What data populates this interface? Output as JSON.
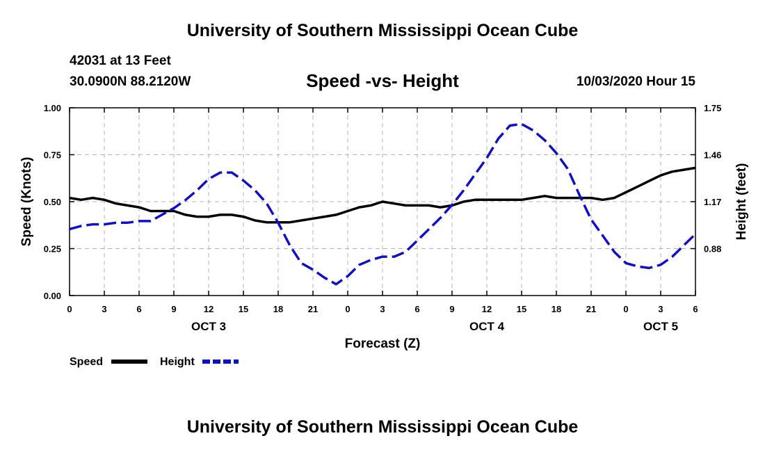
{
  "header": {
    "title": "University of Southern Mississippi Ocean Cube",
    "station": "42031 at 13 Feet",
    "coords": "30.0900N 88.2120W",
    "date": "10/03/2020 Hour 15"
  },
  "footer": {
    "title": "University of Southern Mississippi Ocean Cube"
  },
  "chart_data": {
    "type": "line",
    "title": "Speed -vs- Height",
    "xlabel": "Forecast (Z)",
    "ylabel": "Speed (Knots)",
    "y2label": "Height (feet)",
    "xlim": [
      0,
      54
    ],
    "ylim": [
      0,
      1.0
    ],
    "y2lim": [
      0.59,
      1.75
    ],
    "grid": true,
    "x_ticks": [
      0,
      3,
      6,
      9,
      12,
      15,
      18,
      21,
      24,
      27,
      30,
      33,
      36,
      39,
      42,
      45,
      48,
      51,
      54
    ],
    "x_tick_labels": [
      "0",
      "3",
      "6",
      "9",
      "12",
      "15",
      "18",
      "21",
      "0",
      "3",
      "6",
      "9",
      "12",
      "15",
      "18",
      "21",
      "0",
      "3",
      "6"
    ],
    "y_ticks": [
      0,
      0.25,
      0.5,
      0.75,
      1.0
    ],
    "y_tick_labels": [
      "0.00",
      "0.25",
      "0.50",
      "0.75",
      "1.00"
    ],
    "y2_ticks": [
      0.88,
      1.17,
      1.46,
      1.75
    ],
    "y2_tick_labels": [
      "0.88",
      "1.17",
      "1.46",
      "1.75"
    ],
    "day_labels": [
      {
        "x": 12,
        "label": "OCT 3"
      },
      {
        "x": 36,
        "label": "OCT 4"
      },
      {
        "x": 51,
        "label": "OCT 5"
      }
    ],
    "legend_position": "bottom-left",
    "series": [
      {
        "name": "Speed",
        "axis": "left",
        "color": "#000000",
        "style": "solid",
        "x": [
          0,
          1,
          2,
          3,
          4,
          5,
          6,
          7,
          8,
          9,
          10,
          11,
          12,
          13,
          14,
          15,
          16,
          17,
          18,
          19,
          20,
          21,
          22,
          23,
          24,
          25,
          26,
          27,
          28,
          29,
          30,
          31,
          32,
          33,
          34,
          35,
          36,
          37,
          38,
          39,
          40,
          41,
          42,
          43,
          44,
          45,
          46,
          47,
          48,
          49,
          50,
          51,
          52,
          53,
          54
        ],
        "values": [
          0.52,
          0.51,
          0.52,
          0.51,
          0.49,
          0.48,
          0.47,
          0.45,
          0.45,
          0.45,
          0.43,
          0.42,
          0.42,
          0.43,
          0.43,
          0.42,
          0.4,
          0.39,
          0.39,
          0.39,
          0.4,
          0.41,
          0.42,
          0.43,
          0.45,
          0.47,
          0.48,
          0.5,
          0.49,
          0.48,
          0.48,
          0.48,
          0.47,
          0.48,
          0.5,
          0.51,
          0.51,
          0.51,
          0.51,
          0.51,
          0.52,
          0.53,
          0.52,
          0.52,
          0.52,
          0.52,
          0.51,
          0.52,
          0.55,
          0.58,
          0.61,
          0.64,
          0.66,
          0.67,
          0.68
        ]
      },
      {
        "name": "Height",
        "axis": "right",
        "color": "#1010c8",
        "style": "dashed",
        "x": [
          0,
          1,
          2,
          3,
          4,
          5,
          6,
          7,
          8,
          9,
          10,
          11,
          12,
          13,
          14,
          15,
          16,
          17,
          18,
          19,
          20,
          21,
          22,
          23,
          24,
          25,
          26,
          27,
          28,
          29,
          30,
          31,
          32,
          33,
          34,
          35,
          36,
          37,
          38,
          39,
          40,
          41,
          42,
          43,
          44,
          45,
          46,
          47,
          48,
          49,
          50,
          51,
          52,
          53,
          54
        ],
        "values": [
          1.0,
          1.02,
          1.03,
          1.03,
          1.04,
          1.04,
          1.05,
          1.05,
          1.09,
          1.13,
          1.18,
          1.24,
          1.31,
          1.35,
          1.35,
          1.3,
          1.24,
          1.16,
          1.04,
          0.9,
          0.79,
          0.75,
          0.7,
          0.66,
          0.71,
          0.78,
          0.81,
          0.83,
          0.83,
          0.86,
          0.93,
          1.0,
          1.07,
          1.15,
          1.24,
          1.34,
          1.44,
          1.56,
          1.64,
          1.65,
          1.61,
          1.55,
          1.47,
          1.37,
          1.21,
          1.06,
          0.96,
          0.86,
          0.79,
          0.77,
          0.76,
          0.78,
          0.83,
          0.9,
          0.97
        ]
      }
    ]
  }
}
